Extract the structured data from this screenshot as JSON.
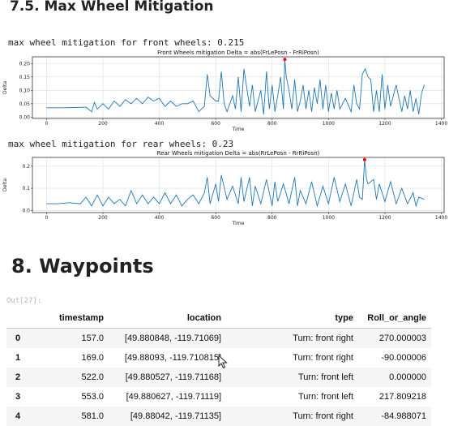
{
  "headings": {
    "section_75": "7.5. Max Wheel Mitigation",
    "section_8": "8. Waypoints"
  },
  "outputs": {
    "front_text": "max wheel mitigation for front wheels: 0.215",
    "rear_text": "max wheel mitigation for rear wheels: 0.23",
    "out_prompt": "Out[27]:"
  },
  "chart_data": [
    {
      "type": "line",
      "title": "Front Wheels mitigation Delta = abs(FrLePosn - FrRiPosn)",
      "xlabel": "Time",
      "ylabel": "Delta",
      "xlim": [
        -50,
        1410
      ],
      "ylim": [
        -0.005,
        0.225
      ],
      "xticks": [
        0,
        200,
        400,
        600,
        800,
        1000,
        1200,
        1400
      ],
      "yticks": [
        0.0,
        0.05,
        0.1,
        0.15,
        0.2
      ],
      "ytick_labels": [
        "0.00",
        "0.05",
        "0.10",
        "0.15",
        "0.20"
      ],
      "grid": true,
      "line_color": "#1f77b4",
      "max_marker": {
        "x": 845,
        "y": 0.215,
        "color": "#ff0000"
      },
      "series": [
        {
          "x": [
            0,
            60,
            100,
            140,
            160,
            170,
            180,
            200,
            220,
            240,
            260,
            280,
            300,
            320,
            340,
            360,
            380,
            400,
            420,
            440,
            460,
            480,
            500,
            520,
            540,
            560,
            570,
            580,
            600,
            610,
            620,
            630,
            640,
            660,
            670,
            680,
            690,
            700,
            720,
            730,
            740,
            760,
            770,
            780,
            790,
            800,
            810,
            820,
            830,
            840,
            845,
            850,
            860,
            870,
            880,
            890,
            900,
            910,
            920,
            930,
            940,
            950,
            960,
            970,
            980,
            990,
            1000,
            1010,
            1020,
            1030,
            1040,
            1060,
            1080,
            1090,
            1100,
            1110,
            1120,
            1130,
            1140,
            1150,
            1160,
            1170,
            1180,
            1190,
            1200,
            1210,
            1220,
            1240,
            1260,
            1270,
            1280,
            1290,
            1300,
            1310,
            1320,
            1330,
            1340
          ],
          "y": [
            0.035,
            0.035,
            0.036,
            0.037,
            0.02,
            0.055,
            0.03,
            0.05,
            0.03,
            0.06,
            0.04,
            0.065,
            0.05,
            0.07,
            0.05,
            0.075,
            0.06,
            0.07,
            0.04,
            0.06,
            0.04,
            0.05,
            0.05,
            0.06,
            0.02,
            0.04,
            0.16,
            0.08,
            0.06,
            0.06,
            0.17,
            0.05,
            0.02,
            0.08,
            0.03,
            0.15,
            0.02,
            0.18,
            0.04,
            0.12,
            0.02,
            0.1,
            0.01,
            0.17,
            0.03,
            0.12,
            0.02,
            0.08,
            0.15,
            0.03,
            0.215,
            0.15,
            0.1,
            0.03,
            0.14,
            0.02,
            0.06,
            0.12,
            0.03,
            0.1,
            0.02,
            0.11,
            0.05,
            0.14,
            0.03,
            0.12,
            0.02,
            0.09,
            0.03,
            0.1,
            0.03,
            0.07,
            0.02,
            0.12,
            0.05,
            0.03,
            0.16,
            0.18,
            0.15,
            0.14,
            0.02,
            0.1,
            0.02,
            0.16,
            0.03,
            0.12,
            0.04,
            0.12,
            0.02,
            0.08,
            0.03,
            0.1,
            0.02,
            0.07,
            0.01,
            0.09,
            0.12
          ]
        }
      ]
    },
    {
      "type": "line",
      "title": "Rear Wheels mitigation Delta = abs(RrLePosn - RrRiPosn)",
      "xlabel": "Time",
      "ylabel": "Delta",
      "xlim": [
        -50,
        1410
      ],
      "ylim": [
        -0.01,
        0.24
      ],
      "xticks": [
        0,
        200,
        400,
        600,
        800,
        1000,
        1200,
        1400
      ],
      "yticks": [
        0.0,
        0.1,
        0.2
      ],
      "ytick_labels": [
        "0.0",
        "0.1",
        "0.2"
      ],
      "grid": true,
      "line_color": "#1f77b4",
      "max_marker": {
        "x": 1128,
        "y": 0.23,
        "color": "#ff0000"
      },
      "series": [
        {
          "x": [
            0,
            40,
            80,
            120,
            140,
            160,
            180,
            200,
            220,
            240,
            260,
            280,
            300,
            320,
            340,
            360,
            380,
            400,
            420,
            440,
            460,
            480,
            500,
            520,
            540,
            560,
            570,
            580,
            600,
            610,
            620,
            640,
            660,
            680,
            690,
            700,
            720,
            730,
            740,
            760,
            780,
            800,
            810,
            820,
            840,
            860,
            880,
            890,
            900,
            920,
            940,
            960,
            980,
            1000,
            1020,
            1040,
            1060,
            1080,
            1100,
            1110,
            1120,
            1128,
            1135,
            1140,
            1160,
            1170,
            1180,
            1200,
            1220,
            1240,
            1260,
            1280,
            1300,
            1310,
            1320,
            1340
          ],
          "y": [
            0.03,
            0.03,
            0.035,
            0.03,
            0.06,
            0.02,
            0.07,
            0.02,
            0.06,
            0.03,
            0.05,
            0.02,
            0.09,
            0.03,
            0.07,
            0.03,
            0.06,
            0.03,
            0.08,
            0.03,
            0.07,
            0.02,
            0.05,
            0.07,
            0.03,
            0.08,
            0.15,
            0.03,
            0.12,
            0.04,
            0.16,
            0.05,
            0.11,
            0.03,
            0.15,
            0.04,
            0.15,
            0.02,
            0.11,
            0.03,
            0.14,
            0.02,
            0.13,
            0.04,
            0.12,
            0.03,
            0.15,
            0.02,
            0.09,
            0.03,
            0.13,
            0.02,
            0.11,
            0.03,
            0.15,
            0.04,
            0.12,
            0.02,
            0.14,
            0.06,
            0.05,
            0.23,
            0.14,
            0.12,
            0.14,
            0.05,
            0.12,
            0.04,
            0.13,
            0.03,
            0.1,
            0.03,
            0.08,
            0.02,
            0.06,
            0.05
          ]
        }
      ]
    }
  ],
  "table": {
    "columns": [
      "timestamp",
      "location",
      "type",
      "Roll_or_angle"
    ],
    "rows": [
      {
        "index": "0",
        "timestamp": "157.0",
        "location": "[49.880848, -119.71069]",
        "type": "Turn: front right",
        "roll": "270.000003"
      },
      {
        "index": "1",
        "timestamp": "169.0",
        "location": "[49.88093, -119.710815]",
        "type": "Turn: front right",
        "roll": "-90.000006"
      },
      {
        "index": "2",
        "timestamp": "522.0",
        "location": "[49.880527, -119.71168]",
        "type": "Turn: front left",
        "roll": "0.000000"
      },
      {
        "index": "3",
        "timestamp": "553.0",
        "location": "[49.880627, -119.71119]",
        "type": "Turn: front left",
        "roll": "217.809218"
      },
      {
        "index": "4",
        "timestamp": "581.0",
        "location": "[49.88042, -119.71135]",
        "type": "Turn: front right",
        "roll": "-84.988071"
      }
    ]
  }
}
